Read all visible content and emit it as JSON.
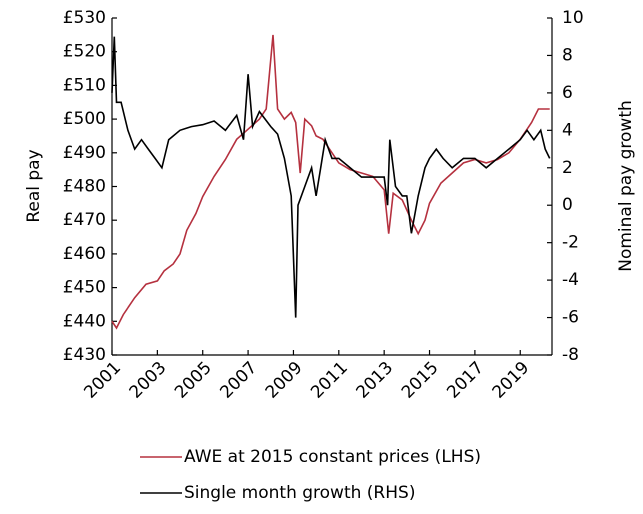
{
  "chart_data": {
    "type": "line",
    "y_label": "Real pay",
    "y2_label": "Nominal pay growth",
    "xlim": [
      2001,
      2020.4
    ],
    "xticks": [
      2001,
      2003,
      2005,
      2007,
      2009,
      2011,
      2013,
      2015,
      2017,
      2019
    ],
    "ylim": [
      430,
      530
    ],
    "yticks": [
      {
        "value": 430,
        "label": "£430"
      },
      {
        "value": 440,
        "label": "£440"
      },
      {
        "value": 450,
        "label": "£450"
      },
      {
        "value": 460,
        "label": "£460"
      },
      {
        "value": 470,
        "label": "£470"
      },
      {
        "value": 480,
        "label": "£480"
      },
      {
        "value": 490,
        "label": "£490"
      },
      {
        "value": 500,
        "label": "£500"
      },
      {
        "value": 510,
        "label": "£510"
      },
      {
        "value": 520,
        "label": "£520"
      },
      {
        "value": 530,
        "label": "£530"
      }
    ],
    "y2lim": [
      -8,
      10
    ],
    "y2ticks": [
      -8,
      -6,
      -4,
      -2,
      0,
      2,
      4,
      6,
      8,
      10
    ],
    "series": [
      {
        "name": "AWE at 2015 constant prices (LHS)",
        "color": "#b5313f",
        "axis": "y",
        "x": [
          2001.0,
          2001.2,
          2001.5,
          2002,
          2002.5,
          2003,
          2003.3,
          2003.7,
          2004,
          2004.3,
          2004.7,
          2005,
          2005.5,
          2006,
          2006.5,
          2007,
          2007.5,
          2007.8,
          2008.1,
          2008.3,
          2008.6,
          2008.9,
          2009.1,
          2009.3,
          2009.5,
          2009.8,
          2010,
          2010.3,
          2010.7,
          2011,
          2011.5,
          2012,
          2012.5,
          2013,
          2013.2,
          2013.4,
          2013.8,
          2014.2,
          2014.5,
          2014.8,
          2015,
          2015.5,
          2016,
          2016.5,
          2017,
          2017.5,
          2018,
          2018.5,
          2019,
          2019.5,
          2019.8,
          2020.3
        ],
        "values": [
          440,
          438,
          442,
          447,
          451,
          452,
          455,
          457,
          460,
          467,
          472,
          477,
          483,
          488,
          494,
          497,
          500,
          503,
          525,
          503,
          500,
          502,
          499,
          484,
          500,
          498,
          495,
          494,
          490,
          487,
          485,
          484,
          483,
          479,
          466,
          478,
          476,
          470,
          466,
          470,
          475,
          481,
          484,
          487,
          488,
          487,
          488,
          490,
          494,
          499,
          503,
          503
        ]
      },
      {
        "name": "Single month growth (RHS)",
        "color": "#000000",
        "axis": "y2",
        "x": [
          2001.0,
          2001.1,
          2001.2,
          2001.4,
          2001.7,
          2002,
          2002.3,
          2002.6,
          2002.9,
          2003.2,
          2003.5,
          2004,
          2004.5,
          2005,
          2005.5,
          2006,
          2006.5,
          2006.8,
          2007,
          2007.2,
          2007.5,
          2008,
          2008.3,
          2008.6,
          2008.9,
          2009.1,
          2009.2,
          2009.5,
          2009.8,
          2010,
          2010.2,
          2010.4,
          2010.7,
          2011,
          2011.5,
          2012,
          2012.5,
          2013,
          2013.15,
          2013.25,
          2013.5,
          2013.8,
          2014.0,
          2014.2,
          2014.5,
          2014.8,
          2015,
          2015.3,
          2015.6,
          2016,
          2016.5,
          2017,
          2017.5,
          2018,
          2018.5,
          2019,
          2019.3,
          2019.6,
          2019.9,
          2020.1,
          2020.3
        ],
        "values": [
          6,
          9,
          5.5,
          5.5,
          4,
          3,
          3.5,
          3,
          2.5,
          2,
          3.5,
          4,
          4.2,
          4.3,
          4.5,
          4,
          4.8,
          3.5,
          7,
          4.2,
          5,
          4.2,
          3.8,
          2.5,
          0.5,
          -6,
          0,
          1,
          2,
          0.5,
          2,
          3.5,
          2.5,
          2.5,
          2,
          1.5,
          1.5,
          1.5,
          0,
          3.5,
          1,
          0.5,
          0.5,
          -1.5,
          0.5,
          2,
          2.5,
          3,
          2.5,
          2,
          2.5,
          2.5,
          2,
          2.5,
          3,
          3.5,
          4,
          3.5,
          4,
          3,
          2.5
        ]
      }
    ]
  }
}
